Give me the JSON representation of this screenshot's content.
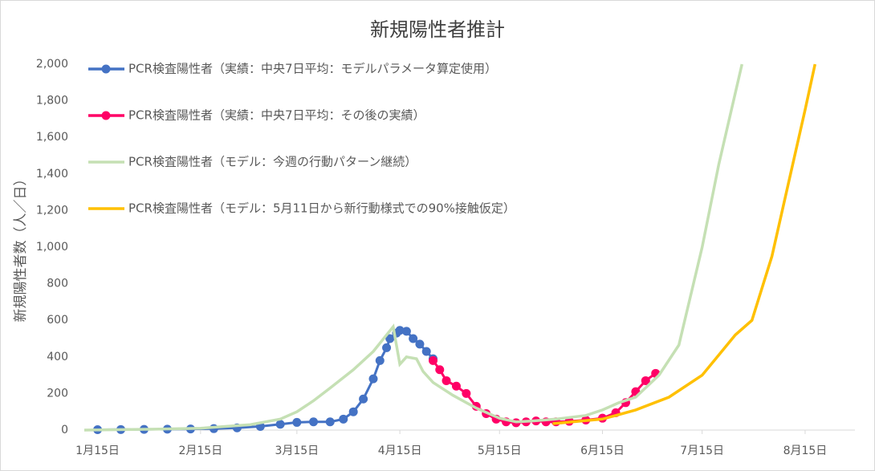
{
  "chart_data": {
    "type": "line",
    "title": "新規陽性者推計",
    "y_label": "新規陽性者数（人／日）",
    "xlim": [
      "1月11日",
      "8月30日"
    ],
    "xticks": [
      "1月15日",
      "2月15日",
      "3月15日",
      "4月15日",
      "5月15日",
      "6月15日",
      "7月15日",
      "8月15日"
    ],
    "ylim": [
      0,
      2000
    ],
    "yticks": [
      0,
      200,
      400,
      600,
      800,
      {
        "value": 1000,
        "label": "1,000"
      },
      {
        "value": 1200,
        "label": "1,200"
      },
      {
        "value": 1400,
        "label": "1,400"
      },
      {
        "value": 1600,
        "label": "1,600"
      },
      {
        "value": 1800,
        "label": "1,800"
      },
      {
        "value": 2000,
        "label": "2,000"
      }
    ],
    "legend": "top-left",
    "series": [
      {
        "name": "PCR検査陽性者（実績：中央7日平均：モデルパラメータ算定使用）",
        "color": "#4472c4",
        "marker": true,
        "x": [
          "1月15日",
          "1月22日",
          "1月29日",
          "2月5日",
          "2月12日",
          "2月19日",
          "2月26日",
          "3月4日",
          "3月10日",
          "3月15日",
          "3月20日",
          "3月25日",
          "3月29日",
          "4月1日",
          "4月4日",
          "4月7日",
          "4月9日",
          "4月11日",
          "4月12日",
          "4月14日",
          "4月15日",
          "4月17日",
          "4月19日",
          "4月21日",
          "4月23日",
          "4月25日"
        ],
        "values": [
          2,
          3,
          4,
          5,
          6,
          8,
          12,
          20,
          32,
          42,
          45,
          45,
          60,
          100,
          170,
          280,
          380,
          450,
          500,
          530,
          545,
          540,
          500,
          470,
          430,
          390
        ]
      },
      {
        "name": "PCR検査陽性者（実績：中央7日平均：その後の実績）",
        "color": "#ff0066",
        "marker": true,
        "x": [
          "4月25日",
          "4月27日",
          "4月29日",
          "5月2日",
          "5月5日",
          "5月8日",
          "5月11日",
          "5月14日",
          "5月17日",
          "5月20日",
          "5月23日",
          "5月26日",
          "5月29日",
          "6月1日",
          "6月5日",
          "6月10日",
          "6月15日",
          "6月19日",
          "6月22日",
          "6月25日",
          "6月28日",
          "7月1日"
        ],
        "values": [
          380,
          330,
          270,
          240,
          200,
          130,
          90,
          60,
          45,
          40,
          45,
          50,
          45,
          45,
          48,
          55,
          65,
          95,
          150,
          210,
          270,
          310
        ]
      },
      {
        "name": "PCR検査陽性者（モデル：今週の行動パターン継続）",
        "color": "#c5e0b4",
        "marker": false,
        "x": [
          "1月11日",
          "2月1日",
          "2月15日",
          "3月1日",
          "3月10日",
          "3月15日",
          "3月20日",
          "3月25日",
          "4月1日",
          "4月7日",
          "4月13日",
          "4月15日",
          "4月17日",
          "4月20日",
          "4月22日",
          "4月25日",
          "5月1日",
          "5月8日",
          "5月15日",
          "5月20日",
          "5月25日",
          "6月1日",
          "6月10日",
          "6月15日",
          "6月20日",
          "6月25日",
          "7月2日",
          "7月8日",
          "7月15日",
          "7月20日",
          "7月27日"
        ],
        "values": [
          0,
          5,
          10,
          30,
          60,
          100,
          160,
          230,
          330,
          430,
          565,
          360,
          400,
          390,
          320,
          260,
          190,
          120,
          65,
          45,
          50,
          60,
          80,
          110,
          150,
          180,
          300,
          465,
          1000,
          1450,
          2000
        ]
      },
      {
        "name": "PCR検査陽性者（モデル：5月11日から新行動様式での90%接触仮定）",
        "color": "#ffc000",
        "marker": false,
        "x": [
          "5月31日",
          "6月15日",
          "6月25日",
          "7月5日",
          "7月15日",
          "7月25日",
          "7月30日",
          "8月5日",
          "8月10日",
          "8月15日",
          "8月18日"
        ],
        "values": [
          35,
          60,
          110,
          180,
          300,
          520,
          600,
          950,
          1350,
          1750,
          2000
        ]
      }
    ]
  }
}
